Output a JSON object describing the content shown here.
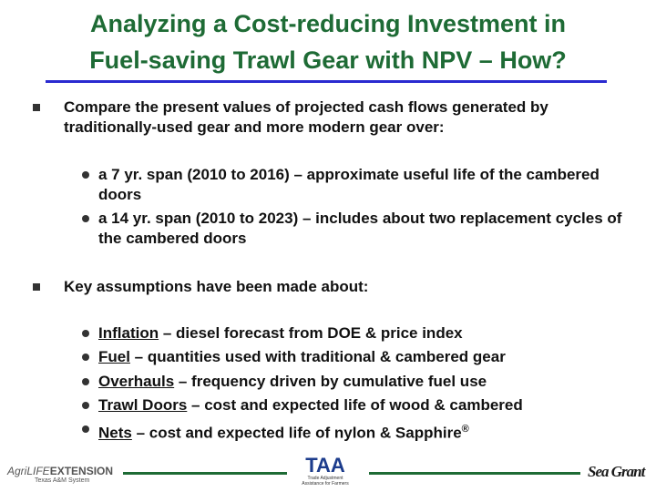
{
  "header": {
    "title": [
      "Analyzing a Cost-reducing Investment  in",
      "Fuel-saving Trawl Gear with NPV – How?"
    ]
  },
  "bullets": [
    {
      "text": "Compare the present values of projected cash flows generated by traditionally-used gear and more modern gear over:",
      "items": [
        "a 7 yr. span (2010 to 2016) – approximate useful life of the cambered doors",
        "a 14 yr. span (2010 to 2023) – includes about two replacement cycles of the cambered doors"
      ]
    },
    {
      "text": "Key assumptions have been made about:",
      "items": [
        {
          "term": "Inflation",
          "detail": " – diesel forecast from DOE & price index"
        },
        {
          "term": "Fuel",
          "detail": " – quantities used with traditional & cambered gear"
        },
        {
          "term": "Overhauls",
          "detail": " – frequency driven by cumulative fuel use"
        },
        {
          "term": "Trawl Doors",
          "detail": " – cost and expected life of wood & cambered"
        },
        {
          "term": "Nets",
          "detail": " – cost and expected life of nylon & Sapphire",
          "mark": "®"
        }
      ]
    }
  ],
  "footer": {
    "logos": [
      {
        "part1": "AgriLIFE",
        "part2": "EXTENSION",
        "sub": "Texas A&M System"
      },
      {
        "name": "TAA",
        "sub": "Trade Adjustment Assistance for Farmers"
      },
      {
        "name": "Sea Grant"
      }
    ]
  }
}
